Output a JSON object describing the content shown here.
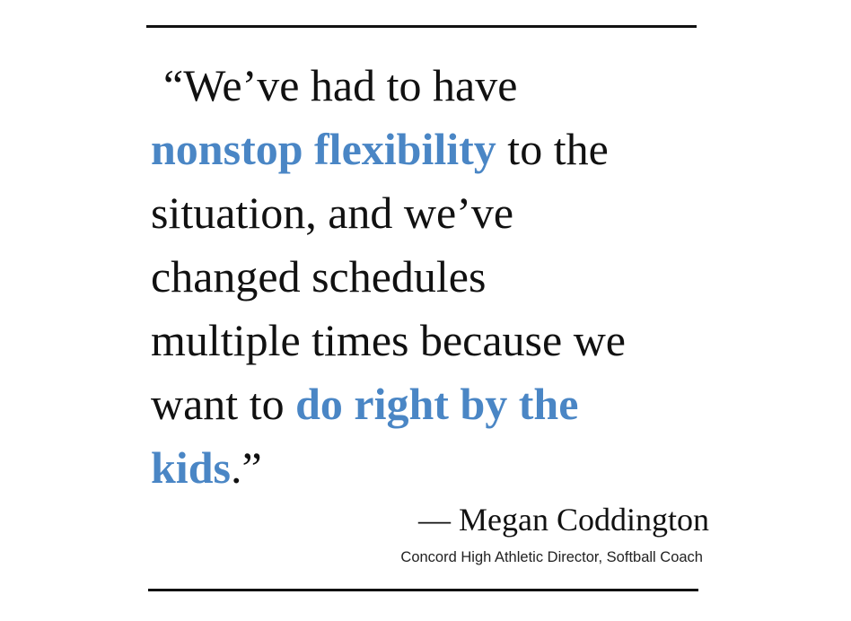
{
  "quote": {
    "lines": [
      [
        {
          "text": "“We’ve had to have",
          "style": "plain"
        }
      ],
      [
        {
          "text": "nonstop flexibility",
          "style": "highlight"
        },
        {
          "text": " to the",
          "style": "plain"
        }
      ],
      [
        {
          "text": "situation, and we’ve",
          "style": "plain"
        }
      ],
      [
        {
          "text": "changed schedules",
          "style": "plain"
        }
      ],
      [
        {
          "text": "multiple times because we",
          "style": "plain"
        }
      ],
      [
        {
          "text": "want to ",
          "style": "plain"
        },
        {
          "text": "do right by the",
          "style": "highlight"
        }
      ],
      [
        {
          "text": "kids",
          "style": "highlight"
        },
        {
          "text": ".”",
          "style": "plain"
        }
      ]
    ]
  },
  "attribution": {
    "name": "— Megan Coddington",
    "title": "Concord High Athletic Director, Softball Coach"
  }
}
